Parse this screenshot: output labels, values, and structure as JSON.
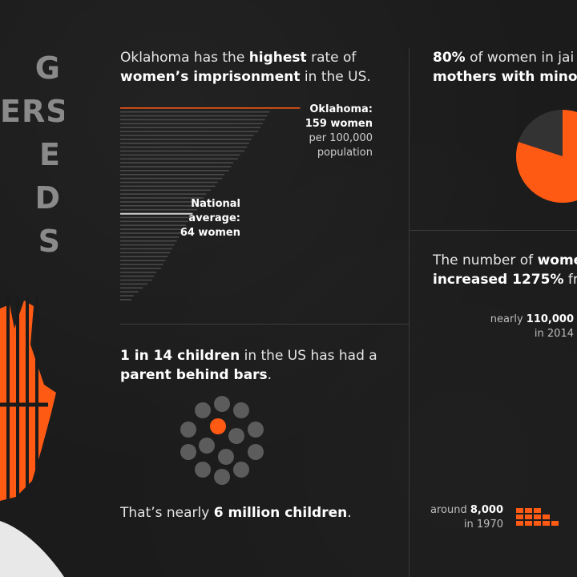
{
  "colors": {
    "background": "#1b1b1b",
    "accent": "#ff5a14",
    "gray": "#5c5c5c",
    "text": "#e6e6e6",
    "title_gray": "#8a8a8a"
  },
  "title": {
    "lines": [
      "G",
      "ERS",
      "E",
      "D",
      "S"
    ]
  },
  "section1": {
    "text_a": "Oklahoma has the ",
    "text_b": "highest",
    "text_c": " rate of",
    "text_d": "women’s imprisonment",
    "text_e": " in the US.",
    "okla_name": "Oklahoma:",
    "okla_value": "159 women",
    "okla_unit1": "per 100,000",
    "okla_unit2": "population",
    "nat_name": "National",
    "nat_name2": "average:",
    "nat_value": "64 women"
  },
  "chart_data": {
    "type": "bar",
    "orientation": "horizontal",
    "highlights": [
      {
        "label": "Oklahoma",
        "value": 159,
        "color": "#ff5a14"
      },
      {
        "label": "National average",
        "value": 64,
        "color": "#cfcfcf"
      }
    ],
    "values": [
      159,
      132,
      130,
      128,
      126,
      124,
      122,
      118,
      116,
      114,
      112,
      110,
      106,
      104,
      100,
      98,
      96,
      92,
      90,
      86,
      84,
      80,
      76,
      74,
      72,
      70,
      68,
      64,
      62,
      60,
      58,
      56,
      54,
      52,
      50,
      48,
      46,
      44,
      42,
      40,
      38,
      36,
      32,
      30,
      28,
      24,
      20,
      16,
      12,
      10
    ],
    "xlim": [
      0,
      170
    ]
  },
  "section2": {
    "pct": "80%",
    "text_a": " of  women in jai",
    "text_b": "mothers with minor c",
    "pie_slices": [
      {
        "label": "mothers",
        "value": 80,
        "color": "#ff5a14"
      },
      {
        "label": "other",
        "value": 20,
        "color": "#333333"
      }
    ]
  },
  "section3": {
    "text_a": "1 in 14 children",
    "text_b": " in the US has had a",
    "text_c": "parent behind bars",
    "text_d": ".",
    "bottom_a": "That’s nearly ",
    "bottom_b": "6 million children",
    "bottom_c": "."
  },
  "section4": {
    "text_a": "The number of ",
    "text_b": "women",
    "text_c": "increased 1275%",
    "text_d": " from",
    "label_2014a": "nearly ",
    "label_2014b": "110,000",
    "label_2014c": "in 2014",
    "label_1970a": "around ",
    "label_1970b": "8,000",
    "label_1970c": "in 1970"
  }
}
